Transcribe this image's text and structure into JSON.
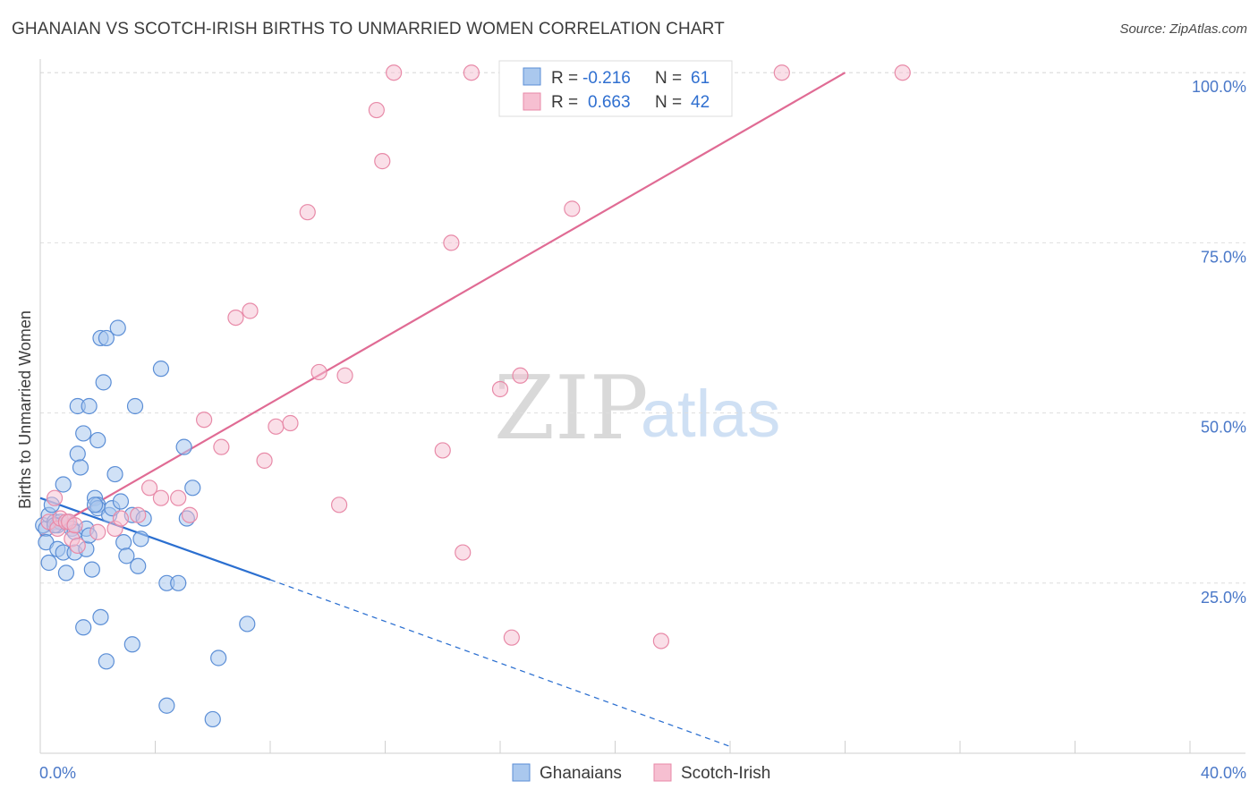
{
  "title": "GHANAIAN VS SCOTCH-IRISH BIRTHS TO UNMARRIED WOMEN CORRELATION CHART",
  "source": "Source: ZipAtlas.com",
  "watermark": {
    "zip": "ZIP",
    "atlas": "atlas"
  },
  "colors": {
    "blue_fill": "#aac8ee",
    "blue_stroke": "#5b8ed6",
    "blue_line": "#2b6fd0",
    "pink_fill": "#f6bfd1",
    "pink_stroke": "#e88aa8",
    "pink_line": "#e06b94",
    "grid": "#dedede",
    "axis_text": "#4a78c8"
  },
  "legend": {
    "r_label": "R =",
    "n_label": "N =",
    "rows": [
      {
        "r": "-0.216",
        "n": "61"
      },
      {
        "r": "0.663",
        "n": "42"
      }
    ]
  },
  "chart_data": {
    "type": "scatter",
    "title": "GHANAIAN VS SCOTCH-IRISH BIRTHS TO UNMARRIED WOMEN CORRELATION CHART",
    "xlabel": "",
    "ylabel": "Births to Unmarried Women",
    "xlim": [
      0,
      40
    ],
    "ylim": [
      0,
      102
    ],
    "x_tick_labels": [
      "0.0%",
      "40.0%"
    ],
    "y_ticks": [
      25,
      50,
      75,
      100
    ],
    "y_tick_labels": [
      "25.0%",
      "50.0%",
      "75.0%",
      "100.0%"
    ],
    "grid": true,
    "legend_position": "top-center",
    "series": [
      {
        "name": "Ghanaians",
        "r": -0.216,
        "n": 61,
        "trend": {
          "x0": 0,
          "y0": 37.5,
          "x1": 8,
          "y1": 25.5,
          "dash_to_x": 24,
          "dash_to_y": 1.0
        },
        "points": [
          [
            0.1,
            33.5
          ],
          [
            0.2,
            33.0
          ],
          [
            0.2,
            31.0
          ],
          [
            0.3,
            28.0
          ],
          [
            0.3,
            35.0
          ],
          [
            0.4,
            36.5
          ],
          [
            0.5,
            34.0
          ],
          [
            0.6,
            30.0
          ],
          [
            0.6,
            33.5
          ],
          [
            0.7,
            34.0
          ],
          [
            0.8,
            39.5
          ],
          [
            0.8,
            29.5
          ],
          [
            0.9,
            26.5
          ],
          [
            1.0,
            34.0
          ],
          [
            1.1,
            33.0
          ],
          [
            1.2,
            29.5
          ],
          [
            1.2,
            32.5
          ],
          [
            1.3,
            44.0
          ],
          [
            1.3,
            51.0
          ],
          [
            1.4,
            42.0
          ],
          [
            1.5,
            47.0
          ],
          [
            1.5,
            18.5
          ],
          [
            1.6,
            33.0
          ],
          [
            1.6,
            30.0
          ],
          [
            1.7,
            32.0
          ],
          [
            1.7,
            51.0
          ],
          [
            1.8,
            27.0
          ],
          [
            1.9,
            37.5
          ],
          [
            2.0,
            36.5
          ],
          [
            2.0,
            36.0
          ],
          [
            2.0,
            46.0
          ],
          [
            2.1,
            61.0
          ],
          [
            2.1,
            20.0
          ],
          [
            2.2,
            54.5
          ],
          [
            2.3,
            13.5
          ],
          [
            2.3,
            61.0
          ],
          [
            2.4,
            35.0
          ],
          [
            2.5,
            36.0
          ],
          [
            2.6,
            41.0
          ],
          [
            2.7,
            62.5
          ],
          [
            2.8,
            37.0
          ],
          [
            2.9,
            31.0
          ],
          [
            3.0,
            29.0
          ],
          [
            3.2,
            35.0
          ],
          [
            3.2,
            16.0
          ],
          [
            3.3,
            51.0
          ],
          [
            3.4,
            27.5
          ],
          [
            3.5,
            31.5
          ],
          [
            3.6,
            34.5
          ],
          [
            4.2,
            56.5
          ],
          [
            4.4,
            25.0
          ],
          [
            4.4,
            7.0
          ],
          [
            4.8,
            25.0
          ],
          [
            5.0,
            45.0
          ],
          [
            5.1,
            34.5
          ],
          [
            5.3,
            39.0
          ],
          [
            6.0,
            5.0
          ],
          [
            6.2,
            14.0
          ],
          [
            7.2,
            19.0
          ],
          [
            0.5,
            33.5
          ],
          [
            1.9,
            36.5
          ]
        ]
      },
      {
        "name": "Scotch-Irish",
        "r": 0.663,
        "n": 42,
        "trend": {
          "x0": 0,
          "y0": 32.0,
          "x1": 28,
          "y1": 100.0
        },
        "points": [
          [
            0.3,
            34.0
          ],
          [
            0.5,
            37.5
          ],
          [
            0.6,
            33.0
          ],
          [
            0.7,
            34.5
          ],
          [
            0.9,
            34.0
          ],
          [
            1.0,
            34.0
          ],
          [
            1.1,
            31.5
          ],
          [
            1.2,
            33.5
          ],
          [
            1.3,
            30.5
          ],
          [
            2.0,
            32.5
          ],
          [
            2.6,
            33.0
          ],
          [
            2.8,
            34.5
          ],
          [
            3.4,
            35.0
          ],
          [
            3.8,
            39.0
          ],
          [
            4.2,
            37.5
          ],
          [
            4.8,
            37.5
          ],
          [
            5.2,
            35.0
          ],
          [
            5.7,
            49.0
          ],
          [
            6.3,
            45.0
          ],
          [
            6.8,
            64.0
          ],
          [
            7.3,
            65.0
          ],
          [
            7.8,
            43.0
          ],
          [
            8.2,
            48.0
          ],
          [
            8.7,
            48.5
          ],
          [
            9.3,
            79.5
          ],
          [
            9.7,
            56.0
          ],
          [
            10.4,
            36.5
          ],
          [
            10.6,
            55.5
          ],
          [
            11.7,
            94.5
          ],
          [
            11.9,
            87.0
          ],
          [
            12.3,
            100.0
          ],
          [
            14.0,
            44.5
          ],
          [
            14.3,
            75.0
          ],
          [
            14.7,
            29.5
          ],
          [
            15.0,
            100.0
          ],
          [
            16.0,
            53.5
          ],
          [
            16.4,
            17.0
          ],
          [
            16.7,
            55.5
          ],
          [
            18.5,
            80.0
          ],
          [
            21.6,
            16.5
          ],
          [
            25.8,
            100.0
          ],
          [
            30.0,
            100.0
          ]
        ]
      }
    ]
  }
}
